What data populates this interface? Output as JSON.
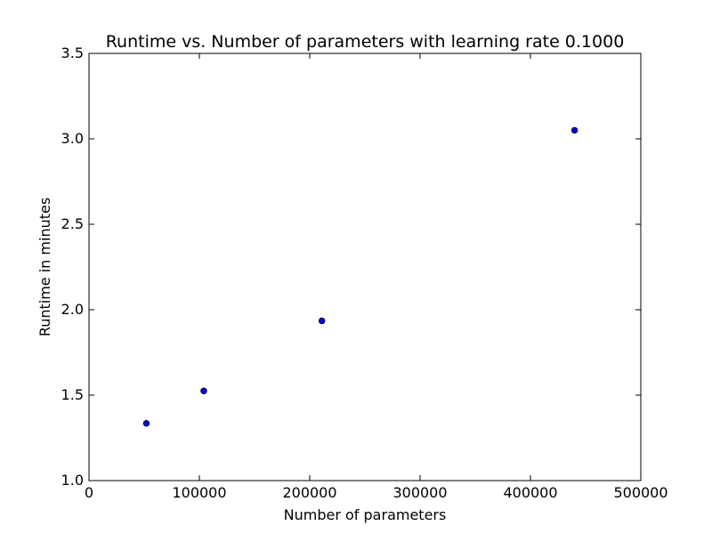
{
  "chart_data": {
    "type": "scatter",
    "title": "Runtime vs. Number of parameters with learning rate 0.1000",
    "xlabel": "Number of parameters",
    "ylabel": "Runtime in minutes",
    "xlim": [
      0,
      500000
    ],
    "ylim": [
      1.0,
      3.5
    ],
    "x_ticks": [
      0,
      100000,
      200000,
      300000,
      400000,
      500000
    ],
    "x_tick_labels": [
      "0",
      "100000",
      "200000",
      "300000",
      "400000",
      "500000"
    ],
    "y_ticks": [
      1.0,
      1.5,
      2.0,
      2.5,
      3.0,
      3.5
    ],
    "y_tick_labels": [
      "1.0",
      "1.5",
      "2.0",
      "2.5",
      "3.0",
      "3.5"
    ],
    "grid": false,
    "series": [
      {
        "name": "runtime",
        "color": "#0000ff",
        "x": [
          52000,
          104000,
          211000,
          440000
        ],
        "y": [
          1.335,
          1.525,
          1.935,
          3.05
        ]
      }
    ]
  }
}
